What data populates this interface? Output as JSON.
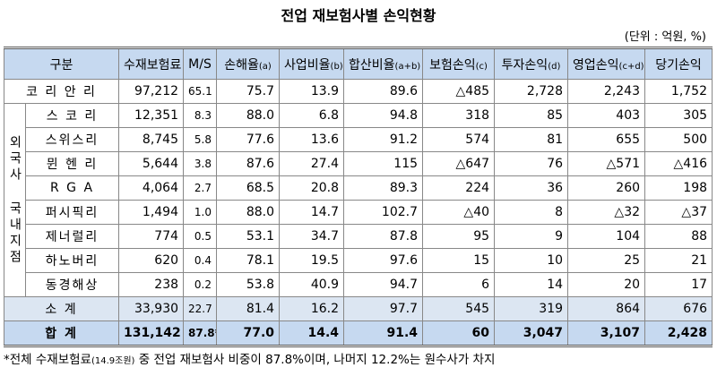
{
  "title": "전업 재보험사별 손익현황",
  "unit": "(단위 : 억원, %)",
  "table": {
    "header": [
      {
        "label": "구분"
      },
      {
        "label": "수재보험료"
      },
      {
        "label": "M/S"
      },
      {
        "label": "손해율",
        "sub": "(a)"
      },
      {
        "label": "사업비율",
        "sub": "(b)"
      },
      {
        "label": "합산비율",
        "sub": "(a+b)"
      },
      {
        "label": "보험손익",
        "sub": "(c)"
      },
      {
        "label": "투자손익",
        "sub": "(d)"
      },
      {
        "label": "영업손익",
        "sub": "(c+d)"
      },
      {
        "label": "당기손익"
      }
    ],
    "rows_top": [
      {
        "name": "코 리 안 리",
        "cells": [
          "97,212",
          "65.1",
          "75.7",
          "13.9",
          "89.6",
          "△485",
          "2,728",
          "2,243",
          "1,752"
        ]
      }
    ],
    "group": {
      "label": "외국사 국내지점",
      "rows": [
        {
          "name": "스 코 리",
          "cells": [
            "12,351",
            "8.3",
            "88.0",
            "6.8",
            "94.8",
            "318",
            "85",
            "403",
            "305"
          ]
        },
        {
          "name": "스위스리",
          "cells": [
            "8,745",
            "5.8",
            "77.6",
            "13.6",
            "91.2",
            "574",
            "81",
            "655",
            "500"
          ]
        },
        {
          "name": "뮌 헨 리",
          "cells": [
            "5,644",
            "3.8",
            "87.6",
            "27.4",
            "115",
            "△647",
            "76",
            "△571",
            "△416"
          ]
        },
        {
          "name": "R G A",
          "cells": [
            "4,064",
            "2.7",
            "68.5",
            "20.8",
            "89.3",
            "224",
            "36",
            "260",
            "198"
          ]
        },
        {
          "name": "퍼시픽리",
          "cells": [
            "1,494",
            "1.0",
            "88.0",
            "14.7",
            "102.7",
            "△40",
            "8",
            "△32",
            "△37"
          ]
        },
        {
          "name": "제너럴리",
          "cells": [
            "774",
            "0.5",
            "53.1",
            "34.7",
            "87.8",
            "95",
            "9",
            "104",
            "88"
          ]
        },
        {
          "name": "하노버리",
          "cells": [
            "620",
            "0.4",
            "78.1",
            "19.5",
            "97.6",
            "15",
            "10",
            "25",
            "21"
          ]
        },
        {
          "name": "동경해상",
          "cells": [
            "238",
            "0.2",
            "53.8",
            "40.9",
            "94.7",
            "6",
            "14",
            "20",
            "17"
          ]
        }
      ]
    },
    "rows_bottom": [
      {
        "name": "소 계",
        "cells": [
          "33,930",
          "22.7",
          "81.4",
          "16.2",
          "97.7",
          "545",
          "319",
          "864",
          "676"
        ]
      },
      {
        "name": "합 계",
        "cells": [
          "131,142",
          "87.8*",
          "77.0",
          "14.4",
          "91.4",
          "60",
          "3,047",
          "3,107",
          "2,428"
        ]
      }
    ]
  },
  "footnote": [
    "*전체 수재보험료",
    "(14.9조원)",
    " 중 전업 재보험사 비중이 87.8%이며, 나머지 12.2%는 원수사가 차지"
  ]
}
